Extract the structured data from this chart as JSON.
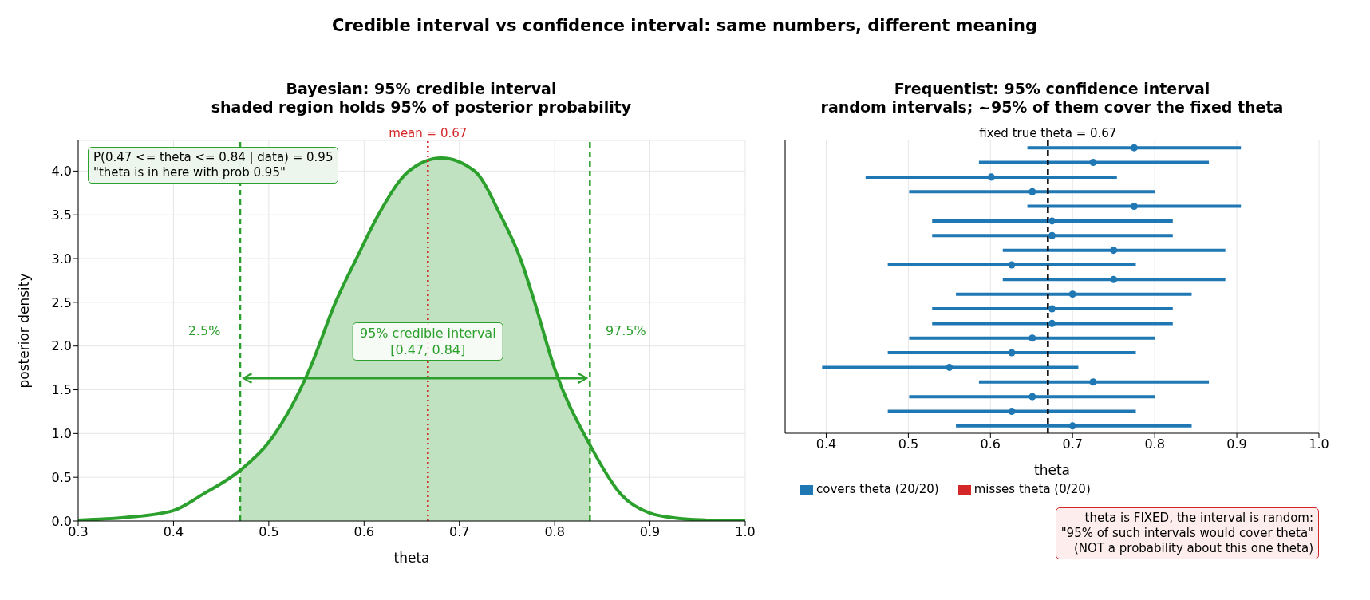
{
  "chart_data": [
    {
      "type": "line",
      "title": "Bayesian: 95% credible interval\nshaded region holds 95% of posterior probability",
      "xlabel": "theta",
      "ylabel": "posterior density",
      "xlim": [
        0.3,
        1.0
      ],
      "xticks": [
        {
          "value": 0.3,
          "label": "0.3"
        },
        {
          "value": 0.4,
          "label": "0.4"
        },
        {
          "value": 0.5,
          "label": "0.5"
        },
        {
          "value": 0.6,
          "label": "0.6"
        },
        {
          "value": 0.7,
          "label": "0.7"
        },
        {
          "value": 0.8,
          "label": "0.8"
        },
        {
          "value": 0.9,
          "label": "0.9"
        },
        {
          "value": 1.0,
          "label": "1.0"
        }
      ],
      "ylim": [
        0,
        4.35
      ],
      "yticks": [
        {
          "value": 0,
          "label": "0.0"
        },
        {
          "value": 0.5,
          "label": "0.5"
        },
        {
          "value": 1,
          "label": "1.0"
        },
        {
          "value": 1.5,
          "label": "1.5"
        },
        {
          "value": 2,
          "label": "2.0"
        },
        {
          "value": 2.5,
          "label": "2.5"
        },
        {
          "value": 3,
          "label": "3.0"
        },
        {
          "value": 3.5,
          "label": "3.5"
        },
        {
          "value": 4,
          "label": "4.0"
        }
      ],
      "grid": true,
      "series": [
        {
          "type": "area",
          "color": "#c0e2c0",
          "x": [
            0.47,
            0.5,
            0.543,
            0.57,
            0.592,
            0.615,
            0.647,
            0.681,
            0.716,
            0.743,
            0.764,
            0.779,
            0.8,
            0.837
          ],
          "values": [
            0.58,
            0.9,
            1.74,
            2.5,
            3.0,
            3.5,
            4.0,
            4.15,
            4.0,
            3.5,
            3.0,
            2.5,
            1.74,
            0.87
          ]
        },
        {
          "type": "line",
          "color": "#2ca02c",
          "x": [
            0.3,
            0.35,
            0.4,
            0.43,
            0.47,
            0.5,
            0.543,
            0.57,
            0.592,
            0.615,
            0.647,
            0.681,
            0.716,
            0.743,
            0.764,
            0.779,
            0.8,
            0.837,
            0.87,
            0.9,
            0.93,
            0.96,
            1.0
          ],
          "values": [
            0.01,
            0.04,
            0.12,
            0.3,
            0.58,
            0.9,
            1.74,
            2.5,
            3.0,
            3.5,
            4.0,
            4.15,
            4.0,
            3.5,
            3.0,
            2.5,
            1.74,
            0.87,
            0.3,
            0.09,
            0.03,
            0.01,
            0.0
          ]
        }
      ],
      "ref_lines": [
        {
          "axis": "x",
          "value": 0.47,
          "color": "#2ca02c",
          "line_style": "dashed"
        },
        {
          "axis": "x",
          "value": 0.837,
          "color": "#2ca02c",
          "line_style": "dashed"
        },
        {
          "axis": "x",
          "value": 0.667,
          "label": "mean = 0.67",
          "color": "#d62728",
          "line_style": "dotted"
        }
      ],
      "annotations": [
        "Credible interval vs confidence interval: same numbers, different meaning",
        "P(0.47 <= theta <= 0.84 | data) = 0.95\n\"theta is in here with prob 0.95\"",
        "2.5%",
        "97.5%",
        {
          "text": "95% credible interval\n[0.47, 0.84]",
          "x": 0.667,
          "y": 2.05
        }
      ]
    },
    {
      "type": "scatter",
      "orientation": "horizontal",
      "title": "Frequentist: 95% confidence interval\nrandom intervals; ~95% of them cover the fixed theta",
      "xlabel": "theta",
      "categories": [
        null,
        null,
        null,
        null,
        null,
        null,
        null,
        null,
        null,
        null,
        null,
        null,
        null,
        null,
        null,
        null,
        null,
        null,
        null,
        null
      ],
      "xlim": [
        0.35,
        1.0
      ],
      "xticks": [
        {
          "value": 0.4,
          "label": "0.4"
        },
        {
          "value": 0.5,
          "label": "0.5"
        },
        {
          "value": 0.6,
          "label": "0.6"
        },
        {
          "value": 0.7,
          "label": "0.7"
        },
        {
          "value": 0.8,
          "label": "0.8"
        },
        {
          "value": 0.9,
          "label": "0.9"
        },
        {
          "value": 1.0,
          "label": "1.0"
        }
      ],
      "tick_labels": "x",
      "grid": "x",
      "legend": "bottom left",
      "marker": "circle",
      "ref_lines": [
        {
          "axis": "x",
          "value": 0.67,
          "label": "fixed true theta = 0.67",
          "color": "#000000",
          "line_style": "dashed"
        }
      ],
      "annotations": [
        "theta is FIXED, the interval is random:\n\"95% of such intervals would cover theta\"\n(NOT a probability about this one theta)"
      ],
      "series": [
        {
          "name": "covers theta (20/20)",
          "color": "#1f77b4",
          "values": [
            0.775,
            0.725,
            0.601,
            0.651,
            0.775,
            0.675,
            0.675,
            0.75,
            0.626,
            0.75,
            0.7,
            0.675,
            0.675,
            0.651,
            0.626,
            0.55,
            0.725,
            0.651,
            0.626,
            0.7
          ],
          "errors": [
            [
              0.645,
              0.905
            ],
            [
              0.586,
              0.866
            ],
            [
              0.448,
              0.754
            ],
            [
              0.501,
              0.8
            ],
            [
              0.645,
              0.905
            ],
            [
              0.529,
              0.822
            ],
            [
              0.529,
              0.822
            ],
            [
              0.615,
              0.886
            ],
            [
              0.475,
              0.777
            ],
            [
              0.615,
              0.886
            ],
            [
              0.558,
              0.845
            ],
            [
              0.529,
              0.822
            ],
            [
              0.529,
              0.822
            ],
            [
              0.501,
              0.8
            ],
            [
              0.475,
              0.777
            ],
            [
              0.395,
              0.707
            ],
            [
              0.586,
              0.866
            ],
            [
              0.501,
              0.8
            ],
            [
              0.475,
              0.777
            ],
            [
              0.558,
              0.845
            ]
          ]
        },
        {
          "name": "misses theta (0/20)",
          "color": "#d62728",
          "values": [
            null,
            null,
            null,
            null,
            null,
            null,
            null,
            null,
            null,
            null,
            null,
            null,
            null,
            null,
            null,
            null,
            null,
            null,
            null,
            null
          ]
        }
      ]
    }
  ]
}
